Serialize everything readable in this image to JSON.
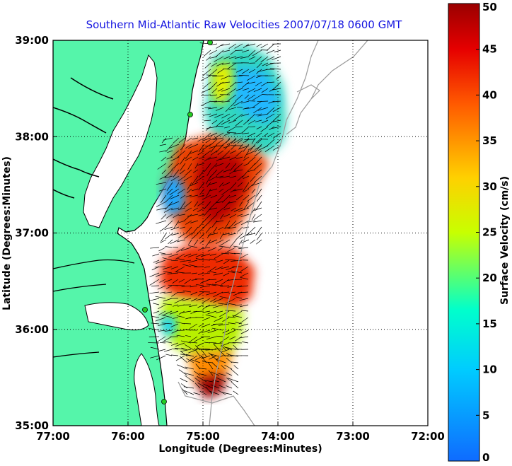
{
  "chart_data": {
    "type": "heatmap",
    "title": "Southern Mid-Atlantic Raw Velocities 2007/07/18 0600 GMT",
    "xlabel": "Longitude (Degrees:Minutes)",
    "ylabel": "Latitude (Degrees:Minutes)",
    "xlim": [
      -77,
      -72
    ],
    "ylim": [
      35,
      39
    ],
    "x_ticks": [
      {
        "value": -77,
        "label": "77:00"
      },
      {
        "value": -76,
        "label": "76:00"
      },
      {
        "value": -75,
        "label": "75:00"
      },
      {
        "value": -74,
        "label": "74:00"
      },
      {
        "value": -73,
        "label": "73:00"
      },
      {
        "value": -72,
        "label": "72:00"
      }
    ],
    "y_ticks": [
      {
        "value": 35,
        "label": "35:00"
      },
      {
        "value": 36,
        "label": "36:00"
      },
      {
        "value": 37,
        "label": "37:00"
      },
      {
        "value": 38,
        "label": "38:00"
      },
      {
        "value": 39,
        "label": "39:00"
      }
    ],
    "grid": true,
    "colorbar": {
      "label": "Surface Velocity (cm/s)",
      "range": [
        0,
        50
      ],
      "ticks": [
        0,
        5,
        10,
        15,
        20,
        25,
        30,
        35,
        40,
        45,
        50
      ],
      "colormap": "jet"
    },
    "land_color": "#55f5aa",
    "coastline_color": "#000000",
    "contour_color": "#9a9a9a",
    "station_color": "#22cc22",
    "regions": [
      {
        "lon": [
          -75.3,
          -74.0
        ],
        "lat": [
          37.9,
          38.9
        ],
        "speed": 15,
        "note": "northern blue-green zone"
      },
      {
        "lon": [
          -75.3,
          -74.3
        ],
        "lat": [
          37.0,
          37.9
        ],
        "speed": 40,
        "note": "central red zone"
      },
      {
        "lon": [
          -75.6,
          -75.2
        ],
        "lat": [
          37.0,
          37.5
        ],
        "speed": 10,
        "note": "nearshore blue"
      },
      {
        "lon": [
          -75.6,
          -74.5
        ],
        "lat": [
          36.3,
          36.9
        ],
        "speed": 40,
        "note": "southern red zone"
      },
      {
        "lon": [
          -75.5,
          -74.4
        ],
        "lat": [
          35.7,
          36.3
        ],
        "speed": 25,
        "note": "southern mixed zone"
      },
      {
        "lon": [
          -75.0,
          -74.7
        ],
        "lat": [
          35.3,
          35.6
        ],
        "speed": 45,
        "note": "southern tip dark red"
      }
    ]
  }
}
